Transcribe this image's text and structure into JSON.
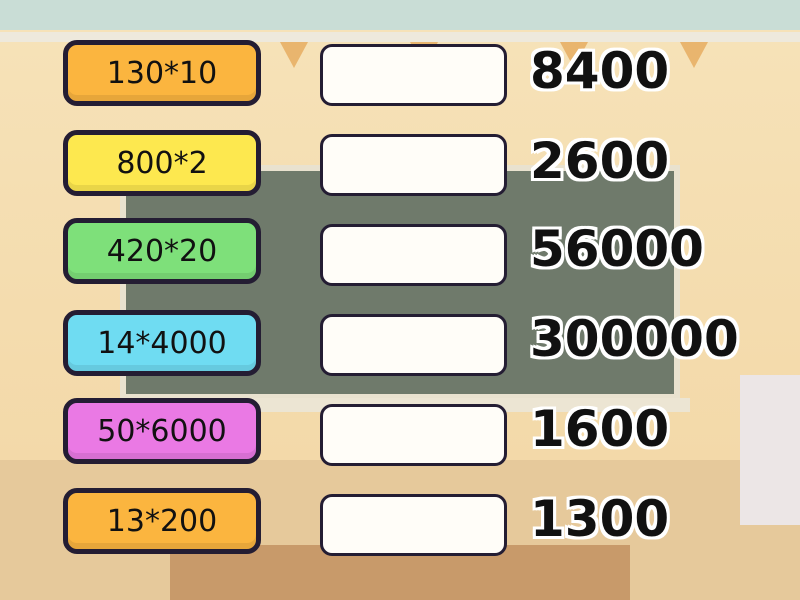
{
  "colors": {
    "orange": "#fbb53f",
    "yellow": "#fde84f",
    "green": "#7ee07a",
    "blue": "#6fdcf2",
    "pink": "#ea79e4"
  },
  "prompts": [
    {
      "label": "130*10",
      "color": "orange"
    },
    {
      "label": "800*2",
      "color": "yellow"
    },
    {
      "label": "420*20",
      "color": "green"
    },
    {
      "label": "14*4000",
      "color": "blue"
    },
    {
      "label": "50*6000",
      "color": "pink"
    },
    {
      "label": "13*200",
      "color": "orange"
    }
  ],
  "answers": [
    "8400",
    "2600",
    "56000",
    "300000",
    "1600",
    "1300"
  ]
}
